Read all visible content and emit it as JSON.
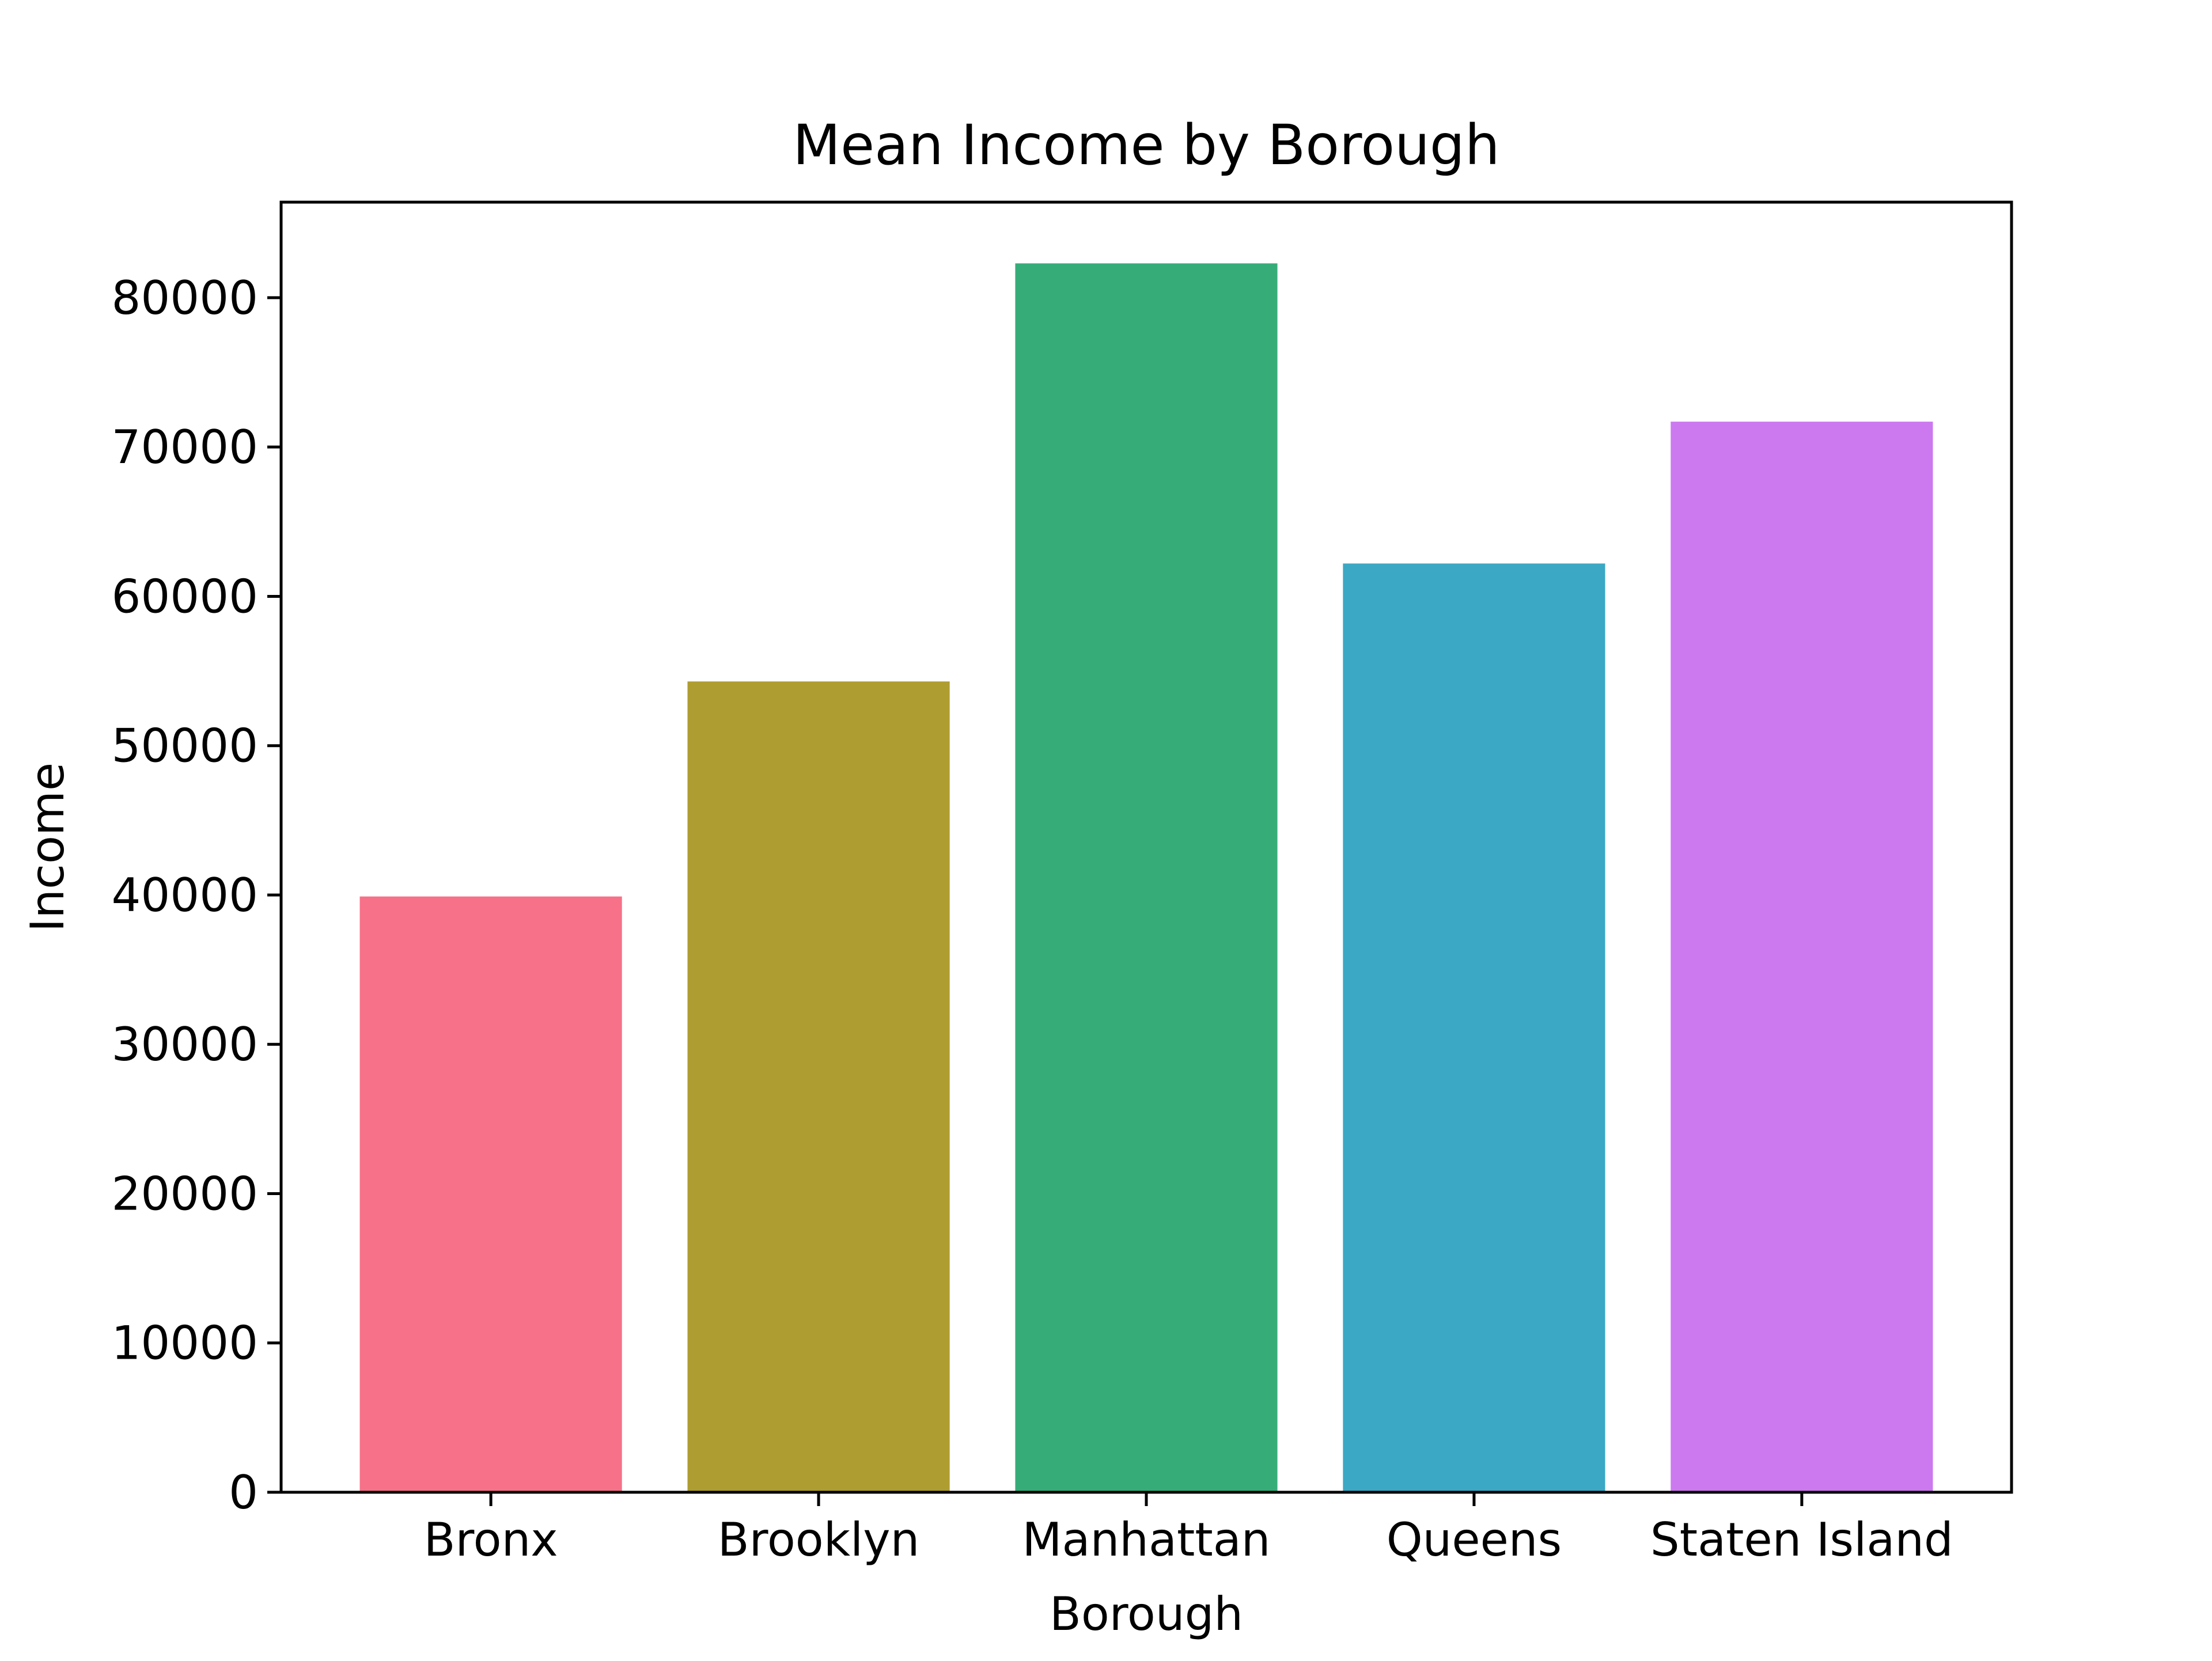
{
  "chart_data": {
    "type": "bar",
    "title": "Mean Income by Borough",
    "xlabel": "Borough",
    "ylabel": "Income",
    "categories": [
      "Bronx",
      "Brooklyn",
      "Manhattan",
      "Queens",
      "Staten Island"
    ],
    "values": [
      39900,
      54300,
      82300,
      62200,
      71700
    ],
    "colors": [
      "#f77189",
      "#ae9d31",
      "#36ad79",
      "#3ba8c5",
      "#cc79f0"
    ],
    "ylim": [
      0,
      86400
    ],
    "yticks": [
      0,
      10000,
      20000,
      30000,
      40000,
      50000,
      60000,
      70000,
      80000
    ],
    "ytick_labels": [
      "0",
      "10000",
      "20000",
      "30000",
      "40000",
      "50000",
      "60000",
      "70000",
      "80000"
    ],
    "grid": false,
    "legend": null
  }
}
